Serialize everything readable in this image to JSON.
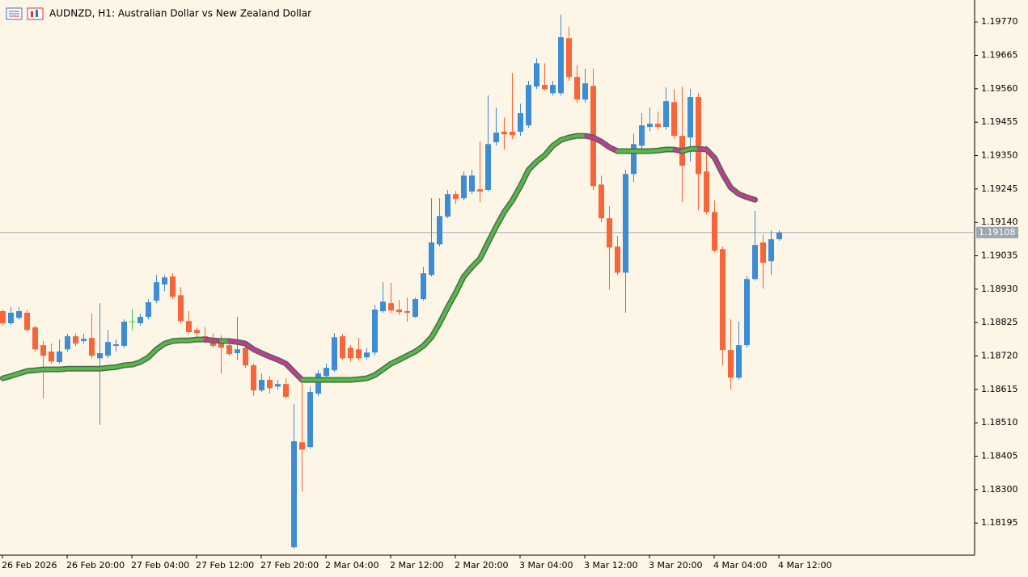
{
  "chart_data": {
    "type": "candlestick",
    "title": "AUDNZD, H1:  Australian Dollar vs New Zealand Dollar",
    "categories": [
      "26 Feb 2026",
      null,
      null,
      null,
      null,
      null,
      null,
      null,
      "26 Feb 20:00",
      null,
      null,
      null,
      null,
      null,
      null,
      null,
      "27 Feb 04:00",
      null,
      null,
      null,
      null,
      null,
      null,
      null,
      "27 Feb 12:00",
      null,
      null,
      null,
      null,
      null,
      null,
      null,
      "27 Feb 20:00",
      null,
      null,
      null,
      null,
      null,
      null,
      null,
      "2 Mar 04:00",
      null,
      null,
      null,
      null,
      null,
      null,
      null,
      "2 Mar 12:00",
      null,
      null,
      null,
      null,
      null,
      null,
      null,
      "2 Mar 20:00",
      null,
      null,
      null,
      null,
      null,
      null,
      null,
      "3 Mar 04:00",
      null,
      null,
      null,
      null,
      null,
      null,
      null,
      "3 Mar 12:00",
      null,
      null,
      null,
      null,
      null,
      null,
      null,
      "3 Mar 20:00",
      null,
      null,
      null,
      null,
      null,
      null,
      null,
      "4 Mar 04:00",
      null,
      null,
      null,
      null,
      null,
      null,
      null,
      "4 Mar 12:00"
    ],
    "open": [
      1.18861,
      1.18823,
      1.1884,
      1.18856,
      1.1881,
      1.18754,
      1.18734,
      1.18701,
      1.18741,
      1.18782,
      1.18767,
      1.18777,
      1.18713,
      1.18721,
      1.18752,
      1.18752,
      1.18828,
      1.18823,
      1.18843,
      1.18894,
      1.18945,
      1.1897,
      1.18911,
      1.1883,
      1.18802,
      1.18782,
      1.18777,
      1.18772,
      1.18754,
      1.18729,
      1.18746,
      1.18691,
      1.18612,
      1.18645,
      1.18624,
      1.18632,
      1.18119,
      1.18449,
      1.18434,
      1.18602,
      1.18657,
      1.18675,
      1.18782,
      1.18746,
      1.18741,
      1.18716,
      1.18731,
      1.18861,
      1.18886,
      1.18866,
      1.18861,
      1.18843,
      1.18899,
      1.18975,
      1.19071,
      1.19158,
      1.19229,
      1.19216,
      1.19237,
      1.19244,
      1.19242,
      1.19392,
      1.19425,
      1.19425,
      1.19425,
      1.19445,
      1.19567,
      1.19572,
      1.19546,
      1.19546,
      1.19719,
      1.19597,
      1.19526,
      1.19569,
      1.19259,
      1.19153,
      1.19064,
      1.18982,
      1.19292,
      1.19381,
      1.1944,
      1.1945,
      1.1944,
      1.19518,
      1.19412,
      1.19407,
      1.19534,
      1.193,
      1.19173,
      1.19056,
      1.18739,
      1.18652,
      1.18754,
      1.18962,
      1.19077,
      1.19018,
      1.19087
    ],
    "high": [
      1.18866,
      1.18873,
      1.18873,
      1.18866,
      1.18815,
      1.18767,
      1.18759,
      1.18772,
      1.1879,
      1.18792,
      1.1879,
      1.18853,
      1.18886,
      1.18802,
      1.18772,
      1.18835,
      1.18868,
      1.18853,
      1.18899,
      1.18975,
      1.18975,
      1.1898,
      1.18937,
      1.18861,
      1.1881,
      1.1881,
      1.18792,
      1.18785,
      1.18777,
      1.18843,
      1.18752,
      1.18696,
      1.18665,
      1.18657,
      1.18645,
      1.1865,
      1.18569,
      1.1865,
      1.18624,
      1.18675,
      1.18696,
      1.18792,
      1.1879,
      1.18754,
      1.18777,
      1.18746,
      1.18881,
      1.18952,
      1.1895,
      1.18896,
      1.18904,
      1.18904,
      1.19,
      1.19216,
      1.19216,
      1.19242,
      1.19239,
      1.193,
      1.19305,
      1.19394,
      1.19539,
      1.19501,
      1.1947,
      1.1961,
      1.19513,
      1.19585,
      1.19656,
      1.1964,
      1.19585,
      1.19793,
      1.19755,
      1.19635,
      1.19623,
      1.19623,
      1.19287,
      1.19191,
      1.19097,
      1.19305,
      1.19419,
      1.19483,
      1.19501,
      1.19488,
      1.19564,
      1.19559,
      1.19567,
      1.19559,
      1.19546,
      1.19381,
      1.19209,
      1.19064,
      1.18835,
      1.18828,
      1.18972,
      1.19176,
      1.19102,
      1.19115,
      1.19115
    ],
    "low": [
      1.18818,
      1.18818,
      1.18835,
      1.18797,
      1.18734,
      1.18586,
      1.18696,
      1.18696,
      1.18734,
      1.18752,
      1.18759,
      1.18713,
      1.18503,
      1.18713,
      1.18734,
      1.18746,
      1.18802,
      1.18815,
      1.18835,
      1.18886,
      1.18924,
      1.18899,
      1.18823,
      1.1879,
      1.18772,
      1.18759,
      1.18746,
      1.18665,
      1.18721,
      1.18708,
      1.18683,
      1.18594,
      1.18607,
      1.18602,
      1.18614,
      1.18586,
      1.18114,
      1.18294,
      1.18429,
      1.18594,
      1.18645,
      1.1867,
      1.18708,
      1.18703,
      1.18706,
      1.18708,
      1.18721,
      1.18856,
      1.18856,
      1.18848,
      1.18828,
      1.1884,
      1.18894,
      1.1897,
      1.19064,
      1.19153,
      1.19198,
      1.19209,
      1.19229,
      1.19204,
      1.19237,
      1.19381,
      1.19369,
      1.19402,
      1.19412,
      1.19437,
      1.19559,
      1.19554,
      1.19539,
      1.19539,
      1.19585,
      1.19516,
      1.19516,
      1.19242,
      1.1914,
      1.18929,
      1.18975,
      1.18856,
      1.19267,
      1.19369,
      1.19427,
      1.19432,
      1.19432,
      1.19402,
      1.19204,
      1.19331,
      1.19178,
      1.19165,
      1.19046,
      1.18691,
      1.18614,
      1.18645,
      1.18746,
      1.18957,
      1.18932,
      1.18975,
      1.19082
    ],
    "close": [
      1.18823,
      1.18856,
      1.18861,
      1.18802,
      1.18741,
      1.18721,
      1.18703,
      1.18734,
      1.18782,
      1.18759,
      1.18774,
      1.18721,
      1.18729,
      1.18764,
      1.18757,
      1.18828,
      1.18828,
      1.18843,
      1.18889,
      1.18952,
      1.18967,
      1.18906,
      1.1883,
      1.18795,
      1.18792,
      1.18772,
      1.18752,
      1.18746,
      1.18726,
      1.18741,
      1.18691,
      1.18612,
      1.18645,
      1.18619,
      1.18632,
      1.18592,
      1.18452,
      1.18426,
      1.18607,
      1.18665,
      1.18683,
      1.18779,
      1.18713,
      1.18713,
      1.18713,
      1.18731,
      1.18866,
      1.18891,
      1.18863,
      1.18858,
      1.18856,
      1.18899,
      1.1898,
      1.19077,
      1.1916,
      1.19229,
      1.19214,
      1.19287,
      1.19287,
      1.19237,
      1.19386,
      1.19422,
      1.19417,
      1.19414,
      1.19483,
      1.19572,
      1.1964,
      1.19559,
      1.19572,
      1.19722,
      1.19597,
      1.19526,
      1.19577,
      1.19254,
      1.19153,
      1.19061,
      1.18982,
      1.19292,
      1.19386,
      1.19445,
      1.1945,
      1.1944,
      1.19521,
      1.19412,
      1.19318,
      1.19534,
      1.19292,
      1.19173,
      1.19051,
      1.18739,
      1.18652,
      1.18754,
      1.18962,
      1.19069,
      1.19013,
      1.19087,
      1.19108
    ],
    "up_color": "#3c8dd6",
    "down_color": "#f7653a",
    "doji_color": "#33cc33",
    "ma": {
      "values": [
        1.1865,
        1.18657,
        1.18665,
        1.18673,
        1.18675,
        1.18678,
        1.18678,
        1.18678,
        1.1868,
        1.1868,
        1.1868,
        1.1868,
        1.1868,
        1.18683,
        1.18685,
        1.18691,
        1.18693,
        1.18701,
        1.18716,
        1.18741,
        1.18759,
        1.18767,
        1.18769,
        1.18769,
        1.18772,
        1.18772,
        1.18769,
        1.18767,
        1.18767,
        1.18764,
        1.18759,
        1.18741,
        1.18729,
        1.18718,
        1.18708,
        1.18696,
        1.1867,
        1.18645,
        1.18645,
        1.18645,
        1.18645,
        1.18645,
        1.18645,
        1.18645,
        1.18647,
        1.1865,
        1.1866,
        1.18678,
        1.18696,
        1.18708,
        1.18721,
        1.18734,
        1.18752,
        1.18779,
        1.18823,
        1.18873,
        1.18919,
        1.1897,
        1.19,
        1.19026,
        1.19077,
        1.19127,
        1.19173,
        1.19209,
        1.19254,
        1.19305,
        1.19331,
        1.19351,
        1.19381,
        1.19399,
        1.19407,
        1.19412,
        1.19412,
        1.19407,
        1.19394,
        1.19376,
        1.19364,
        1.19364,
        1.19364,
        1.19364,
        1.19364,
        1.19366,
        1.19369,
        1.19369,
        1.19364,
        1.19371,
        1.19371,
        1.19369,
        1.19343,
        1.19292,
        1.19249,
        1.19229,
        1.19219,
        1.19211,
        null,
        null,
        null
      ],
      "up_color": "#55b848",
      "down_color": "#c8389a",
      "outline_color": "#4b6b4b"
    },
    "ylim": [
      1.18094,
      1.19839
    ],
    "yticks": [
      {
        "value": 1.1977,
        "label": "1.19770"
      },
      {
        "value": 1.19665,
        "label": "1.19665"
      },
      {
        "value": 1.1956,
        "label": "1.19560"
      },
      {
        "value": 1.19455,
        "label": "1.19455"
      },
      {
        "value": 1.1935,
        "label": "1.19350"
      },
      {
        "value": 1.19245,
        "label": "1.19245"
      },
      {
        "value": 1.1914,
        "label": "1.19140"
      },
      {
        "value": 1.19035,
        "label": "1.19035"
      },
      {
        "value": 1.1893,
        "label": "1.18930"
      },
      {
        "value": 1.18825,
        "label": "1.18825"
      },
      {
        "value": 1.1872,
        "label": "1.18720"
      },
      {
        "value": 1.18615,
        "label": "1.18615"
      },
      {
        "value": 1.1851,
        "label": "1.18510"
      },
      {
        "value": 1.18405,
        "label": "1.18405"
      },
      {
        "value": 1.183,
        "label": "1.18300"
      },
      {
        "value": 1.18195,
        "label": "1.18195"
      }
    ],
    "current_price": {
      "value": 1.19108,
      "label": "1.19108"
    },
    "background": "#fdf5e6"
  }
}
